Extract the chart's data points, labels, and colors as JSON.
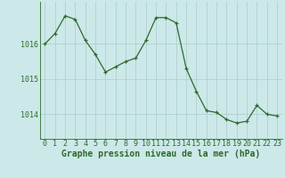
{
  "x": [
    0,
    1,
    2,
    3,
    4,
    5,
    6,
    7,
    8,
    9,
    10,
    11,
    12,
    13,
    14,
    15,
    16,
    17,
    18,
    19,
    20,
    21,
    22,
    23
  ],
  "y": [
    1016.0,
    1016.3,
    1016.8,
    1016.7,
    1016.1,
    1015.7,
    1015.2,
    1015.35,
    1015.5,
    1015.6,
    1016.1,
    1016.75,
    1016.75,
    1016.6,
    1015.3,
    1014.65,
    1014.1,
    1014.05,
    1013.85,
    1013.75,
    1013.8,
    1014.25,
    1014.0,
    1013.95
  ],
  "line_color": "#2d6a2d",
  "marker": "+",
  "marker_size": 3,
  "bg_color": "#cce8e8",
  "grid_color": "#aacccc",
  "axis_color": "#2d6a2d",
  "xlabel": "Graphe pression niveau de la mer (hPa)",
  "xlabel_fontsize": 7,
  "tick_fontsize": 6,
  "yticks": [
    1014,
    1015,
    1016
  ],
  "ylim": [
    1013.3,
    1017.2
  ],
  "xlim": [
    -0.5,
    23.5
  ],
  "title": ""
}
